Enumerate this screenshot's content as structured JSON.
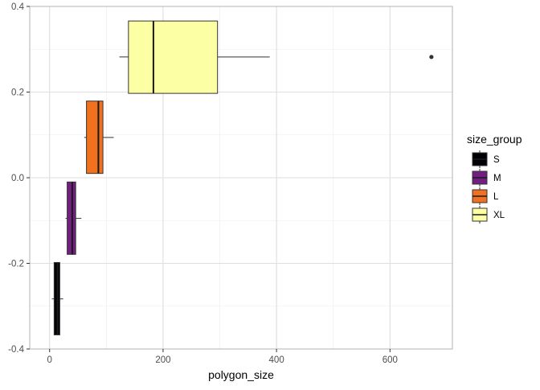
{
  "chart_data": {
    "type": "boxplot",
    "orientation": "horizontal",
    "title": "",
    "xlabel": "polygon_size",
    "ylabel": "",
    "xlim": [
      -35,
      710
    ],
    "ylim": [
      -0.4,
      0.4
    ],
    "x_ticks": [
      0,
      200,
      400,
      600
    ],
    "x_tick_labels": [
      "0",
      "200",
      "400",
      "600"
    ],
    "y_ticks": [
      -0.4,
      -0.2,
      0.0,
      0.2,
      0.4
    ],
    "y_tick_labels": [
      "-0.4",
      "-0.2",
      "0.0",
      "0.2",
      "0.4"
    ],
    "grid": true,
    "legend": {
      "title": "size_group",
      "position": "right",
      "entries": [
        "S",
        "M",
        "L",
        "XL"
      ]
    },
    "series": [
      {
        "name": "S",
        "color": "#000004",
        "y_low": -0.367,
        "y_high": -0.198,
        "y_center": -0.283,
        "whisker_low": 4,
        "q1": 8,
        "median": 14,
        "q3": 18,
        "whisker_high": 24,
        "outliers": []
      },
      {
        "name": "M",
        "color": "#721F81",
        "y_low": -0.179,
        "y_high": -0.01,
        "y_center": -0.095,
        "whisker_low": 28,
        "q1": 31,
        "median": 40,
        "q3": 46,
        "whisker_high": 56,
        "outliers": []
      },
      {
        "name": "L",
        "color": "#F1711F",
        "y_low": 0.01,
        "y_high": 0.179,
        "y_center": 0.094,
        "whisker_low": 61,
        "q1": 65,
        "median": 86,
        "q3": 94,
        "whisker_high": 113,
        "outliers": []
      },
      {
        "name": "XL",
        "color": "#FCFFA4",
        "y_low": 0.197,
        "y_high": 0.366,
        "y_center": 0.282,
        "whisker_low": 123,
        "q1": 139,
        "median": 183,
        "q3": 296,
        "whisker_high": 388,
        "outliers": [
          673
        ]
      }
    ]
  }
}
